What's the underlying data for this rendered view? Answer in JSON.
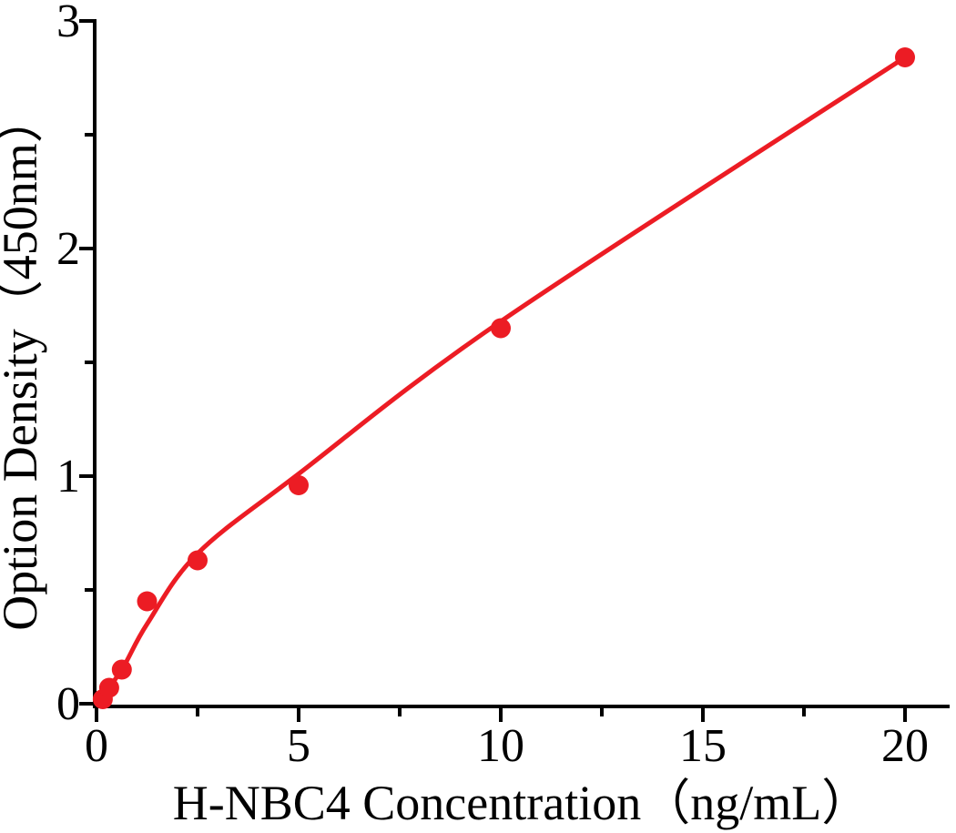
{
  "chart_data": {
    "type": "scatter",
    "title": "",
    "xlabel": "H-NBC4 Concentration（ng/mL）",
    "ylabel": "Option Density（450nm）",
    "points": {
      "x": [
        0.156,
        0.313,
        0.625,
        1.25,
        2.5,
        5,
        10,
        20
      ],
      "y": [
        0.02,
        0.07,
        0.15,
        0.45,
        0.63,
        0.96,
        1.65,
        2.84
      ]
    },
    "fit_curve": {
      "x": [
        0,
        0.625,
        1.25,
        2.5,
        5,
        10,
        20
      ],
      "y": [
        0,
        0.15,
        0.35,
        0.66,
        1.01,
        1.68,
        2.84
      ]
    },
    "xlim": [
      0,
      21
    ],
    "ylim": [
      0,
      3
    ],
    "x_major_ticks": [
      0,
      5,
      10,
      15,
      20
    ],
    "x_minor_ticks": [
      2.5,
      7.5,
      12.5,
      17.5
    ],
    "y_major_ticks": [
      0,
      1,
      2,
      3
    ],
    "y_minor_ticks": [
      0.5,
      1.5,
      2.5
    ],
    "x_tick_labels": [
      "0",
      "5",
      "10",
      "15",
      "20"
    ],
    "y_tick_labels": [
      "0",
      "1",
      "2",
      "3"
    ],
    "grid": false,
    "legend_position": "none",
    "colors": {
      "marker": "#ec1c24",
      "line": "#ec1c24",
      "axis": "#000000",
      "background": "#ffffff"
    }
  }
}
